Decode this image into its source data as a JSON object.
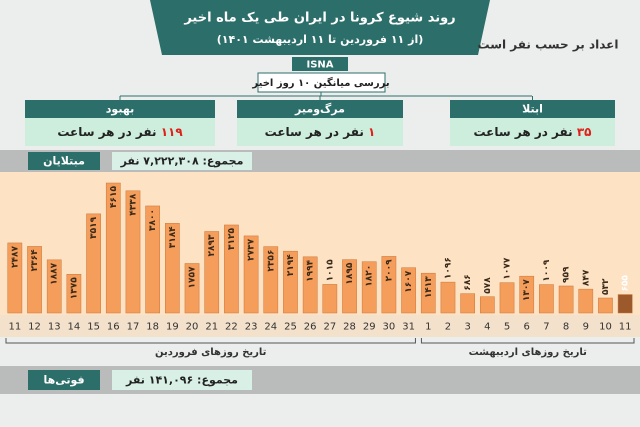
{
  "header": {
    "title": "روند شیوع کرونا در ایران طی یک ماه اخیر",
    "subtitle": "(از ۱۱ فروردین تا ۱۱ اردیبهشت ۱۴۰۱)",
    "source": "ISNA",
    "note": "اعداد بر حسب نفر است"
  },
  "summary": {
    "title": "بررسی میانگین ۱۰ روز اخیر",
    "boxes": [
      {
        "label": "ابتلا",
        "value": "۳۵",
        "unit": "نفر در هر ساعت"
      },
      {
        "label": "مرگ‌ومیر",
        "value": "۱",
        "unit": "نفر در هر ساعت"
      },
      {
        "label": "بهبود",
        "value": "۱۱۹",
        "unit": "نفر در هر ساعت"
      }
    ]
  },
  "chart_data": {
    "type": "bar",
    "title": "مبتلایان",
    "total": "مجموع: ۷,۲۲۲,۳۰۸ نفر",
    "categories": [
      "11",
      "12",
      "13",
      "14",
      "15",
      "16",
      "17",
      "18",
      "19",
      "20",
      "21",
      "22",
      "23",
      "24",
      "25",
      "26",
      "27",
      "28",
      "29",
      "30",
      "31",
      "1",
      "2",
      "3",
      "4",
      "5",
      "6",
      "7",
      "8",
      "9",
      "10",
      "11"
    ],
    "values": [
      2487,
      2364,
      1887,
      1375,
      3519,
      4615,
      4338,
      3800,
      3184,
      1757,
      2893,
      3125,
      2737,
      2356,
      2194,
      1994,
      1015,
      1895,
      1820,
      2009,
      1607,
      1413,
      1096,
      686,
      578,
      1077,
      1307,
      1009,
      959,
      847,
      532,
      655
    ],
    "value_labels": [
      "۲۴۸۷",
      "۲۳۶۴",
      "۱۸۸۷",
      "۱۳۷۵",
      "۳۵۱۹",
      "۴۶۱۵",
      "۴۳۳۸",
      "۳۸۰۰",
      "۳۱۸۴",
      "۱۷۵۷",
      "۲۸۹۳",
      "۳۱۲۵",
      "۲۷۳۷",
      "۲۳۵۶",
      "۲۱۹۴",
      "۱۹۹۴",
      "۱۰۱۵",
      "۱۸۹۵",
      "۱۸۲۰",
      "۲۰۰۹",
      "۱۶۰۷",
      "۱۴۱۳",
      "۱۰۹۶",
      "۶۸۶",
      "۵۷۸",
      "۱۰۷۷",
      "۱۳۰۷",
      "۱۰۰۹",
      "۹۵۹",
      "۸۴۷",
      "۵۳۲",
      "۶۵۵"
    ],
    "colors": [
      "#f59d5a",
      "#f59d5a",
      "#f59d5a",
      "#f59d5a",
      "#f59d5a",
      "#f59d5a",
      "#f59d5a",
      "#f59d5a",
      "#f59d5a",
      "#f59d5a",
      "#f59d5a",
      "#f59d5a",
      "#f59d5a",
      "#f59d5a",
      "#f59d5a",
      "#f59d5a",
      "#f59d5a",
      "#f59d5a",
      "#f59d5a",
      "#f59d5a",
      "#f59d5a",
      "#f59d5a",
      "#f59d5a",
      "#f59d5a",
      "#f59d5a",
      "#f59d5a",
      "#f59d5a",
      "#f59d5a",
      "#f59d5a",
      "#f59d5a",
      "#f59d5a",
      "#9c5a2c"
    ],
    "x_groups": [
      "تاریخ روزهای فروردین",
      "تاریخ روزهای اردیبهشت"
    ]
  },
  "deaths": {
    "title": "فوتی‌ها",
    "total": "مجموع: ۱۴۱,۰۹۶ نفر"
  }
}
